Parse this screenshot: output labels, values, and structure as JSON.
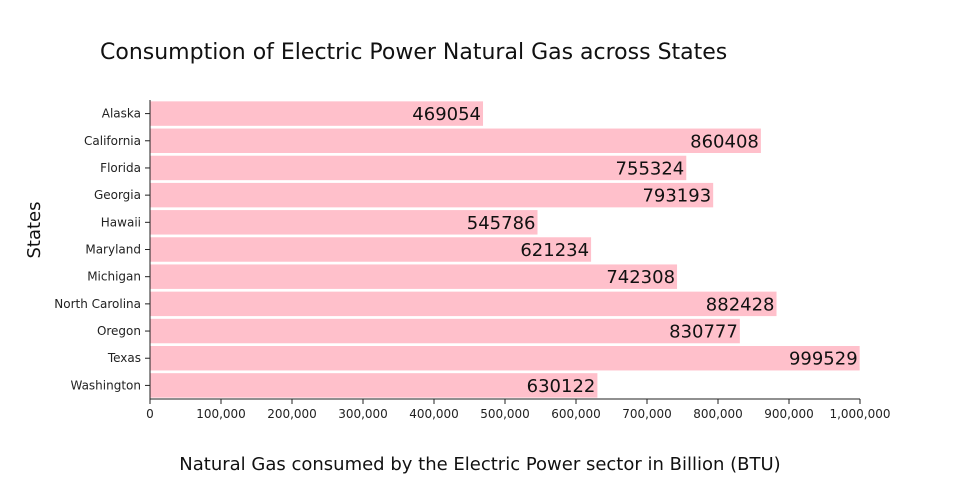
{
  "chart_data": {
    "type": "bar",
    "orientation": "horizontal",
    "title": "Consumption of Electric Power Natural Gas across States",
    "xlabel": "Natural Gas consumed by the Electric Power sector in Billion (BTU)",
    "ylabel": "States",
    "categories": [
      "Alaska",
      "California",
      "Florida",
      "Georgia",
      "Hawaii",
      "Maryland",
      "Michigan",
      "North Carolina",
      "Oregon",
      "Texas",
      "Washington"
    ],
    "values": [
      469054,
      860408,
      755324,
      793193,
      545786,
      621234,
      742308,
      882428,
      830777,
      999529,
      630122
    ],
    "xlim": [
      0,
      1000000
    ],
    "xticks": [
      0,
      100000,
      200000,
      300000,
      400000,
      500000,
      600000,
      700000,
      800000,
      900000,
      1000000
    ],
    "xtick_labels": [
      "0",
      "100,000",
      "200,000",
      "300,000",
      "400,000",
      "500,000",
      "600,000",
      "700,000",
      "800,000",
      "900,000",
      "1,000,000"
    ],
    "bar_color": "#ffc0cb",
    "show_data_labels": true,
    "grid": false,
    "legend": "none"
  }
}
